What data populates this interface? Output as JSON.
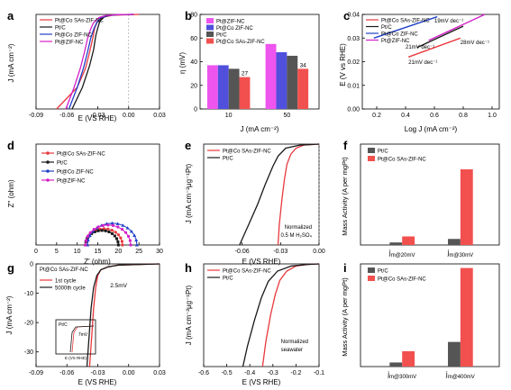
{
  "colors": {
    "red": "#e8383d",
    "black": "#1a1a1a",
    "blue": "#2040c8",
    "magenta": "#d420c8",
    "gray": "#555555",
    "pink": "#ee55ee",
    "indigo": "#5050dd",
    "salmon": "#f2504e"
  },
  "chart_data": [
    {
      "panel": "a",
      "type": "line",
      "xlabel": "E (VS RHE)",
      "ylabel": "J (mA cm⁻²)",
      "xlim": [
        -0.09,
        0.03
      ],
      "ylim": [
        -35,
        0
      ],
      "xticks": [
        "-0.09",
        "-0.06",
        "-0.03",
        "0.00",
        "0.03"
      ],
      "yticks": [],
      "series": [
        {
          "name": "Pt@Co SAs-ZIF-NC",
          "color": "#e8383d",
          "x": [
            -0.07,
            -0.05,
            -0.042,
            -0.038,
            -0.035,
            -0.033,
            -0.03,
            -0.025,
            -0.015,
            0.0,
            0.01
          ],
          "y": [
            -35,
            -27,
            -20,
            -14,
            -9,
            -5,
            -2.5,
            -1,
            -0.3,
            -0.1,
            0
          ]
        },
        {
          "name": "Pt/C",
          "color": "#1a1a1a",
          "x": [
            -0.055,
            -0.045,
            -0.038,
            -0.034,
            -0.032,
            -0.03,
            -0.028,
            -0.024,
            -0.018,
            -0.01,
            0.005
          ],
          "y": [
            -35,
            -27,
            -19,
            -13,
            -8,
            -5,
            -2.5,
            -1,
            -0.3,
            -0.1,
            0
          ]
        },
        {
          "name": "Pt@Co ZIF-NC",
          "color": "#2040c8",
          "x": [
            -0.058,
            -0.05,
            -0.044,
            -0.04,
            -0.037,
            -0.034,
            -0.031,
            -0.027,
            -0.02,
            -0.01,
            0.005
          ],
          "y": [
            -35,
            -27,
            -20,
            -14,
            -9,
            -5.5,
            -3,
            -1.2,
            -0.4,
            -0.1,
            0
          ]
        },
        {
          "name": "Pt@ZIF-NC",
          "color": "#d420c8",
          "x": [
            -0.061,
            -0.053,
            -0.047,
            -0.043,
            -0.04,
            -0.037,
            -0.034,
            -0.029,
            -0.022,
            -0.012,
            0.005
          ],
          "y": [
            -35,
            -27,
            -20,
            -14,
            -9,
            -5.5,
            -3,
            -1.2,
            -0.4,
            -0.1,
            0
          ]
        }
      ]
    },
    {
      "panel": "b",
      "type": "bar",
      "xlabel": "J (mA cm⁻²)",
      "ylabel": "η (mV)",
      "ylim": [
        0,
        80
      ],
      "yticks": [
        "0",
        "20",
        "40",
        "60",
        "80"
      ],
      "categories": [
        "10",
        "50"
      ],
      "series": [
        {
          "name": "Pt@ZIF-NC",
          "color": "#ee55ee",
          "values": [
            37,
            55
          ]
        },
        {
          "name": "Pt@Co ZIF-NC",
          "color": "#5050dd",
          "values": [
            37,
            48
          ]
        },
        {
          "name": "Pt/C",
          "color": "#555555",
          "values": [
            34,
            45
          ]
        },
        {
          "name": "Pt@Co SAs-ZIF-NC",
          "color": "#f2504e",
          "values": [
            27,
            34
          ]
        }
      ],
      "annotations": [
        "27",
        "34"
      ]
    },
    {
      "panel": "c",
      "type": "line",
      "xlabel": "Log J (mA cm⁻²)",
      "ylabel": "E (V vs RHE)",
      "xlim": [
        0.1,
        1.05
      ],
      "ylim": [
        0.0,
        0.04
      ],
      "xticks": [
        "0.2",
        "0.4",
        "0.6",
        "0.8",
        "1.0"
      ],
      "yticks": [
        "0.00",
        "0.01",
        "0.02",
        "0.03",
        "0.04"
      ],
      "series": [
        {
          "name": "Pt@Co SAs-ZIF-NC",
          "color": "#e8383d",
          "x": [
            0.42,
            0.78
          ],
          "y": [
            0.022,
            0.03
          ]
        },
        {
          "name": "Pt/C",
          "color": "#1a1a1a",
          "x": [
            0.48,
            0.8
          ],
          "y": [
            0.026,
            0.035
          ]
        },
        {
          "name": "Pt@Co ZIF-NC",
          "color": "#2040c8",
          "x": [
            0.18,
            0.62
          ],
          "y": [
            0.03,
            0.039
          ]
        },
        {
          "name": "Pt@ZIF-NC",
          "color": "#d420c8",
          "x": [
            0.56,
            0.95
          ],
          "y": [
            0.029,
            0.04
          ]
        }
      ],
      "annotations": [
        "19mV dec⁻¹",
        "21mV dec⁻¹",
        "28mV dec⁻¹",
        "21mV dec⁻¹"
      ]
    },
    {
      "panel": "d",
      "type": "scatter",
      "xlabel": "Z' (ohm)",
      "ylabel": "Z'' (ohm)",
      "xlim": [
        0,
        30
      ],
      "ylim": [
        0,
        20
      ],
      "xticks": [
        "0",
        "5",
        "10",
        "15",
        "20",
        "25",
        "30"
      ],
      "yticks": [],
      "series": [
        {
          "name": "Pt@Co SAs-ZIF-NC",
          "color": "#e8383d",
          "center": 16.5,
          "radius": 4.5
        },
        {
          "name": "Pt/C",
          "color": "#1a1a1a",
          "center": 16,
          "radius": 4.0
        },
        {
          "name": "Pt@Co ZIF-NC",
          "color": "#2040c8",
          "center": 18.5,
          "radius": 6.0
        },
        {
          "name": "Pt@ZIF-NC",
          "color": "#d420c8",
          "center": 17.5,
          "radius": 5.5
        }
      ]
    },
    {
      "panel": "e",
      "type": "line",
      "xlabel": "E (VS RHE)",
      "ylabel": "J (mA cm⁻²μg⁻¹Pt)",
      "xlim": [
        -0.09,
        0.0
      ],
      "ylim": [
        -1,
        0
      ],
      "xticks": [
        "-0.06",
        "-0.03",
        "0.00"
      ],
      "yticks": [],
      "series": [
        {
          "name": "Pt@Co SAs-ZIF-NC",
          "color": "#e8383d",
          "x": [
            -0.032,
            -0.031,
            -0.029,
            -0.027,
            -0.025,
            -0.022,
            -0.018,
            -0.012,
            0.0
          ],
          "y": [
            -1.0,
            -0.8,
            -0.55,
            -0.35,
            -0.2,
            -0.1,
            -0.04,
            -0.01,
            0
          ]
        },
        {
          "name": "Pt/C",
          "color": "#1a1a1a",
          "x": [
            -0.062,
            -0.055,
            -0.048,
            -0.042,
            -0.036,
            -0.032,
            -0.026,
            -0.015,
            0.0
          ],
          "y": [
            -1.0,
            -0.8,
            -0.6,
            -0.4,
            -0.22,
            -0.12,
            -0.04,
            -0.01,
            0
          ]
        }
      ],
      "annotations": [
        "Normalized",
        "0.5 M H₂SO₄"
      ]
    },
    {
      "panel": "f",
      "type": "bar",
      "ylabel": "Mass Activity (A per mgPt)",
      "ylim": [
        0,
        2.0
      ],
      "categories": [
        "j m@20mV",
        "j m@30mV"
      ],
      "series": [
        {
          "name": "Pt/C",
          "color": "#555555",
          "values": [
            0.05,
            0.12
          ]
        },
        {
          "name": "Pt@Co SAs-ZIF-NC",
          "color": "#f2504e",
          "values": [
            0.17,
            1.5
          ]
        }
      ]
    },
    {
      "panel": "g",
      "type": "line",
      "xlabel": "E (VS RHE)",
      "ylabel": "J (mA cm⁻²)",
      "xlim": [
        -0.09,
        0.03
      ],
      "ylim": [
        -35,
        0
      ],
      "xticks": [
        "-0.09",
        "-0.06",
        "-0.03",
        "0.00",
        "0.03"
      ],
      "yticks": [
        "0",
        "-10",
        "-20",
        "-30"
      ],
      "series": [
        {
          "name": "1st cycle",
          "color": "#e8383d",
          "x": [
            -0.038,
            -0.036,
            -0.034,
            -0.032,
            -0.03,
            -0.027,
            -0.02,
            -0.01,
            0.03
          ],
          "y": [
            -35,
            -25,
            -15,
            -8,
            -4,
            -2,
            -1,
            -0.4,
            0
          ]
        },
        {
          "name": "5000th cycle",
          "color": "#1a1a1a",
          "x": [
            -0.0405,
            -0.0385,
            -0.0365,
            -0.034,
            -0.031,
            -0.027,
            -0.02,
            -0.01,
            0.03
          ],
          "y": [
            -35,
            -25,
            -15,
            -8,
            -4,
            -2,
            -1,
            -0.4,
            0
          ]
        }
      ],
      "legend_title": "Pt@Co SAs-ZIF-NC",
      "legend": [
        "1st cycle",
        "5000th cycle"
      ],
      "annotations": [
        "2.5mV"
      ],
      "inset": {
        "label": "Pt/C",
        "annotation": "7mV",
        "xlabel": "E (VS RHE)"
      }
    },
    {
      "panel": "h",
      "type": "line",
      "xlabel": "E (VS RHE)",
      "ylabel": "J (mA cm⁻²μg⁻¹Pt)",
      "xlim": [
        -0.6,
        -0.1
      ],
      "ylim": [
        -1,
        0
      ],
      "xticks": [
        "-0.6",
        "-0.5",
        "-0.4",
        "-0.3",
        "-0.2",
        "-0.1"
      ],
      "yticks": [],
      "series": [
        {
          "name": "Pt@Co SAs-ZIF-NC",
          "color": "#e8383d",
          "x": [
            -0.345,
            -0.33,
            -0.31,
            -0.29,
            -0.27,
            -0.24,
            -0.2,
            -0.15,
            -0.1
          ],
          "y": [
            -1,
            -0.75,
            -0.5,
            -0.3,
            -0.16,
            -0.07,
            -0.02,
            -0.005,
            0
          ]
        },
        {
          "name": "Pt/C",
          "color": "#1a1a1a",
          "x": [
            -0.43,
            -0.41,
            -0.38,
            -0.35,
            -0.32,
            -0.28,
            -0.22,
            -0.15,
            -0.1
          ],
          "y": [
            -1,
            -0.8,
            -0.55,
            -0.33,
            -0.17,
            -0.07,
            -0.02,
            -0.005,
            0
          ]
        }
      ],
      "annotations": [
        "Normalized",
        "seawater"
      ]
    },
    {
      "panel": "i",
      "type": "bar",
      "ylabel": "Mass Activity (A per mgPt)",
      "ylim": [
        0,
        2.0
      ],
      "categories": [
        "j m@300mV",
        "j m@400mV"
      ],
      "series": [
        {
          "name": "Pt/C",
          "color": "#555555",
          "values": [
            0.08,
            0.48
          ]
        },
        {
          "name": "Pt@Co SAs-ZIF-NC",
          "color": "#f2504e",
          "values": [
            0.3,
            1.92
          ]
        }
      ]
    }
  ]
}
